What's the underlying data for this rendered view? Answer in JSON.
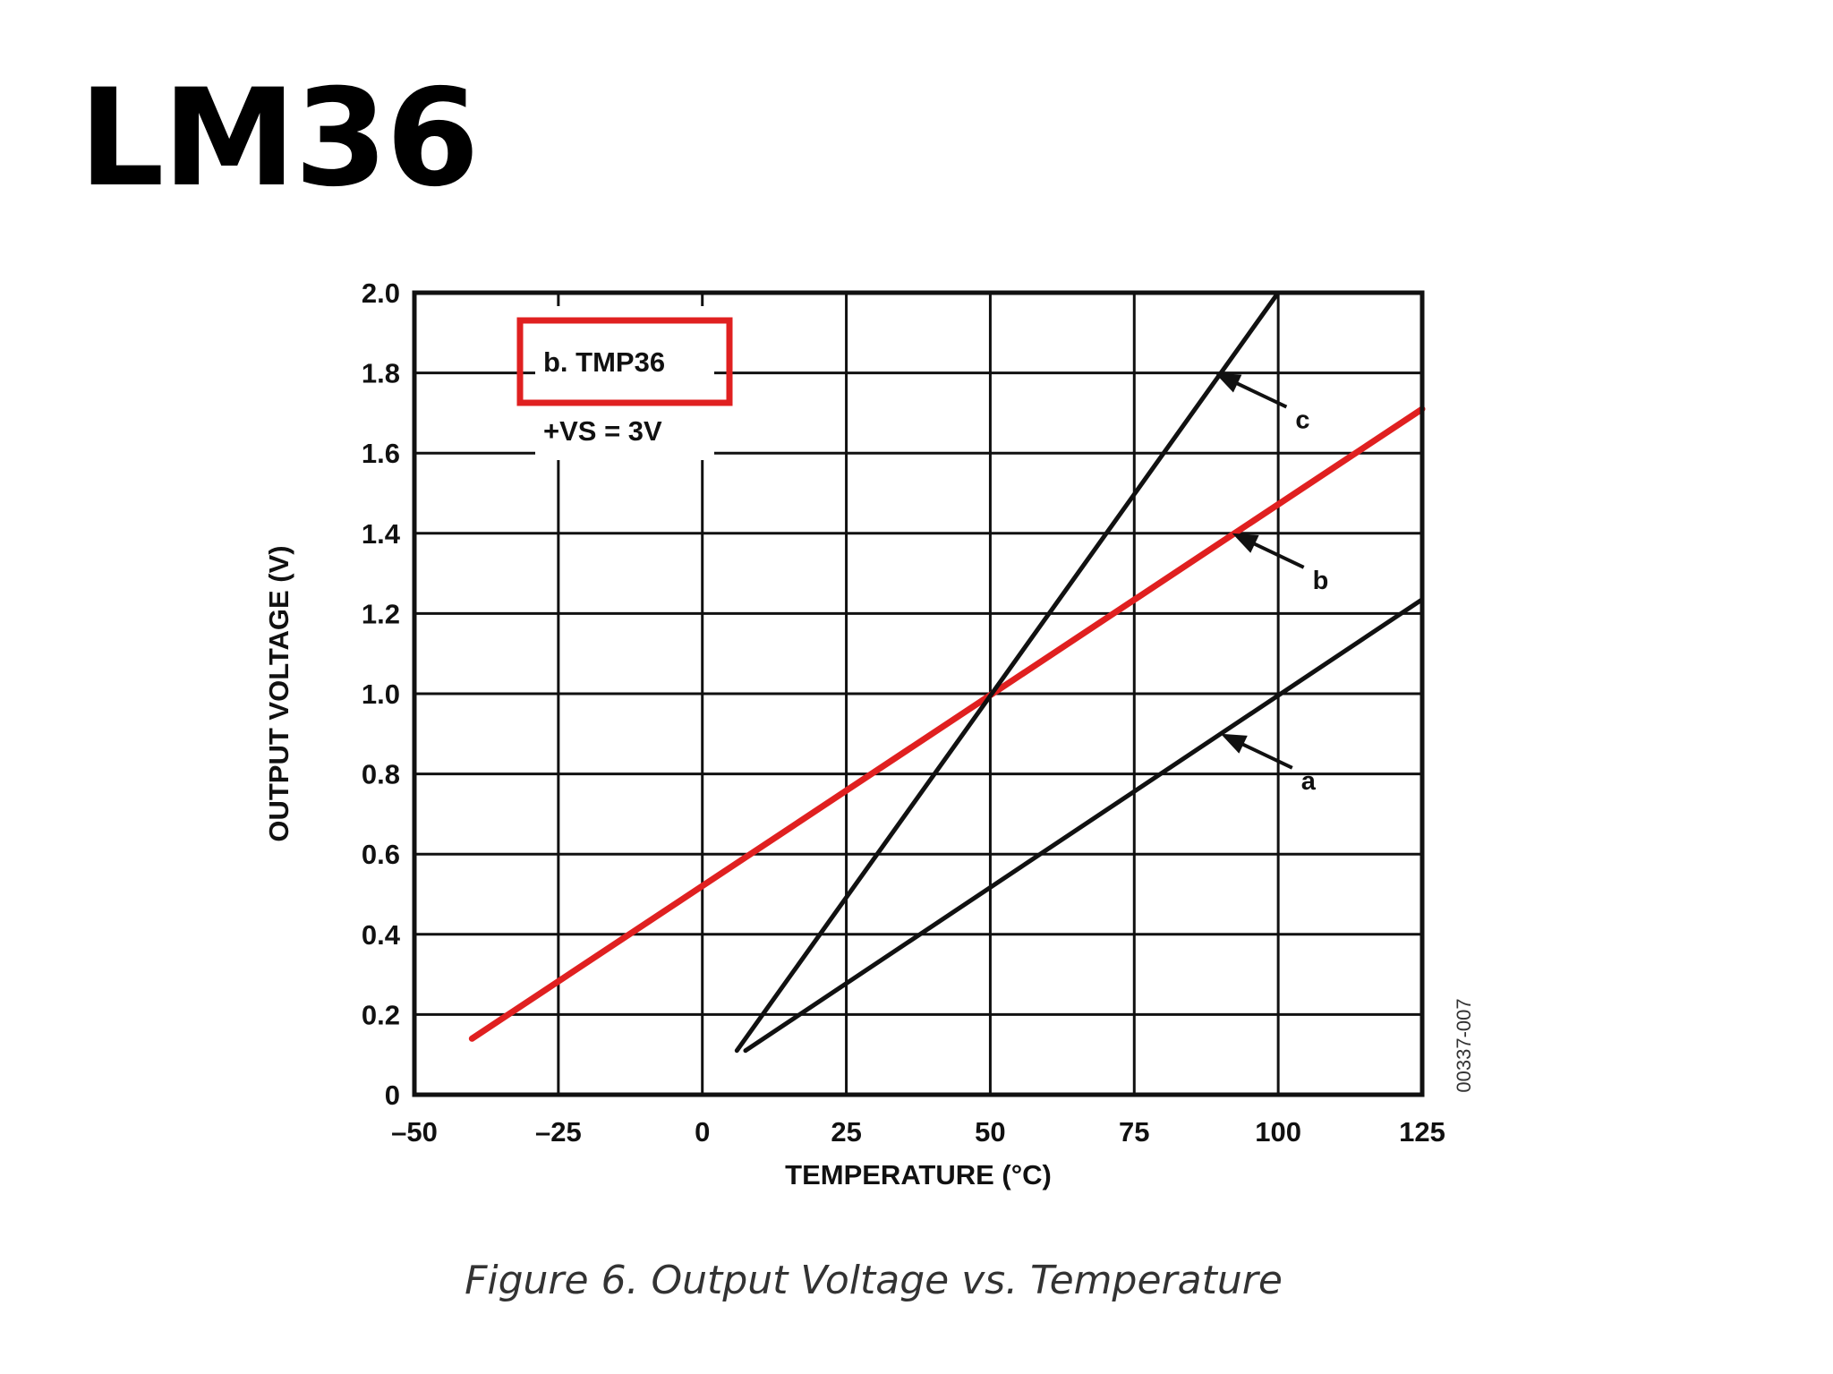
{
  "slide": {
    "title": "LM36",
    "caption": "Figure 6. Output Voltage vs. Temperature"
  },
  "colors": {
    "highlight": "#e02020",
    "series_b": "#e02020",
    "series_other": "#111111",
    "grid": "#111111"
  },
  "chart_data": {
    "type": "line",
    "xlabel": "TEMPERATURE (°C)",
    "ylabel": "OUTPUT VOLTAGE (V)",
    "xlim": [
      -50,
      125
    ],
    "ylim": [
      0,
      2.0
    ],
    "xticks": [
      -50,
      -25,
      0,
      25,
      50,
      75,
      100,
      125
    ],
    "xtick_labels": [
      "–50",
      "–25",
      "0",
      "25",
      "50",
      "75",
      "100",
      "125"
    ],
    "yticks": [
      0,
      0.2,
      0.4,
      0.6,
      0.8,
      1.0,
      1.2,
      1.4,
      1.6,
      1.8,
      2.0
    ],
    "ytick_labels": [
      "0",
      "0.2",
      "0.4",
      "0.6",
      "0.8",
      "1.0",
      "1.2",
      "1.4",
      "1.6",
      "1.8",
      "2.0"
    ],
    "grid": true,
    "legend": {
      "placement": "top-left",
      "entries": [
        "b.  TMP36",
        "+VS = 3V"
      ],
      "highlighted_entry": "b.  TMP36"
    },
    "series": [
      {
        "name": "a",
        "color": "#111111",
        "x": [
          7.5,
          125
        ],
        "y": [
          0.11,
          1.235
        ]
      },
      {
        "name": "b",
        "color": "#e02020",
        "x": [
          -40,
          125
        ],
        "y": [
          0.14,
          1.71
        ]
      },
      {
        "name": "c",
        "color": "#111111",
        "x": [
          6,
          100
        ],
        "y": [
          0.11,
          2.0
        ]
      }
    ],
    "annotations": [
      {
        "label": "a",
        "x": 90,
        "y": 0.9
      },
      {
        "label": "b",
        "x": 92,
        "y": 1.4
      },
      {
        "label": "c",
        "x": 89,
        "y": 1.8
      }
    ],
    "figure_code": "00337-007"
  }
}
